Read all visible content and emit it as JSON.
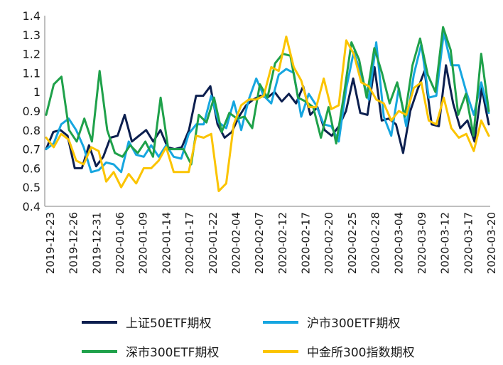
{
  "chart_data": {
    "type": "line",
    "title": "",
    "xlabel": "",
    "ylabel": "",
    "ylim": [
      0.4,
      1.4
    ],
    "yticks": [
      0.4,
      0.5,
      0.6,
      0.7,
      0.8,
      0.9,
      1,
      1.1,
      1.2,
      1.3,
      1.4
    ],
    "grid": false,
    "legend_position": "bottom",
    "x_tick_labels": [
      "2019-12-23",
      "2019-12-26",
      "2019-12-31",
      "2020-01-06",
      "2020-01-09",
      "2020-01-14",
      "2020-01-17",
      "2020-01-22",
      "2020-02-04",
      "2020-02-07",
      "2020-02-12",
      "2020-02-17",
      "2020-02-20",
      "2020-02-25",
      "2020-02-28",
      "2020-03-04",
      "2020-03-09",
      "2020-03-12",
      "2020-03-17",
      "2020-03-20"
    ],
    "series": [
      {
        "name": "上证50ETF期权",
        "color": "#0c1f4f",
        "values": [
          0.7,
          0.79,
          0.8,
          0.77,
          0.6,
          0.6,
          0.72,
          0.61,
          0.66,
          0.76,
          0.77,
          0.88,
          0.74,
          0.77,
          0.8,
          0.74,
          0.8,
          0.71,
          0.7,
          0.71,
          0.8,
          0.98,
          0.98,
          1.03,
          0.83,
          0.76,
          0.79,
          0.87,
          0.93,
          0.96,
          0.98,
          0.97,
          1.0,
          0.95,
          0.99,
          0.94,
          1.03,
          0.88,
          0.92,
          0.8,
          0.77,
          0.82,
          0.9,
          1.07,
          0.89,
          0.88,
          1.13,
          0.85,
          0.86,
          0.83,
          0.68,
          0.9,
          1.01,
          1.11,
          0.83,
          0.82,
          1.14,
          0.94,
          0.81,
          0.85,
          0.74,
          1.02,
          0.83
        ]
      },
      {
        "name": "沪市300ETF期权",
        "color": "#16a6e0",
        "values": [
          0.7,
          0.73,
          0.83,
          0.86,
          0.8,
          0.71,
          0.58,
          0.59,
          0.63,
          0.62,
          0.58,
          0.74,
          0.67,
          0.66,
          0.72,
          0.66,
          0.72,
          0.66,
          0.65,
          0.78,
          0.83,
          0.83,
          0.98,
          0.84,
          0.81,
          0.95,
          0.8,
          0.96,
          1.07,
          0.98,
          0.94,
          1.09,
          1.12,
          1.1,
          0.87,
          0.99,
          0.93,
          0.83,
          0.82,
          0.74,
          1.02,
          1.21,
          1.09,
          0.96,
          1.26,
          0.87,
          0.77,
          1.02,
          0.82,
          1.09,
          1.25,
          0.97,
          0.98,
          1.31,
          1.14,
          1.14,
          1.0,
          0.88,
          1.05,
          0.89
        ]
      },
      {
        "name": "深市300ETF期权",
        "color": "#1fa14a",
        "values": [
          0.88,
          1.04,
          1.08,
          0.8,
          0.74,
          0.86,
          0.74,
          1.11,
          0.8,
          0.68,
          0.66,
          0.72,
          0.68,
          0.74,
          0.66,
          0.97,
          0.7,
          0.7,
          0.7,
          0.62,
          0.88,
          0.84,
          0.97,
          0.79,
          0.89,
          0.86,
          0.87,
          0.81,
          1.04,
          0.97,
          1.15,
          1.2,
          1.19,
          0.97,
          0.95,
          0.92,
          0.76,
          0.92,
          0.73,
          0.98,
          1.26,
          1.17,
          0.97,
          1.23,
          1.1,
          0.94,
          1.05,
          0.87,
          1.14,
          1.28,
          1.09,
          1.0,
          1.34,
          1.22,
          0.88,
          0.99,
          0.77,
          1.2,
          0.9
        ]
      },
      {
        "name": "中金所300指数期权",
        "color": "#fbc400",
        "values": [
          0.76,
          0.71,
          0.78,
          0.75,
          0.64,
          0.62,
          0.71,
          0.69,
          0.53,
          0.58,
          0.5,
          0.57,
          0.52,
          0.6,
          0.6,
          0.64,
          0.71,
          0.58,
          0.58,
          0.58,
          0.77,
          0.76,
          0.78,
          0.48,
          0.52,
          0.83,
          0.93,
          0.96,
          0.96,
          0.98,
          1.13,
          1.11,
          1.29,
          1.13,
          1.06,
          0.92,
          0.92,
          1.07,
          0.91,
          0.93,
          1.27,
          1.2,
          1.05,
          1.03,
          0.96,
          0.94,
          0.85,
          0.9,
          0.88,
          1.02,
          1.05,
          0.85,
          0.83,
          0.97,
          0.81,
          0.76,
          0.78,
          0.69,
          0.85,
          0.77
        ]
      }
    ]
  }
}
